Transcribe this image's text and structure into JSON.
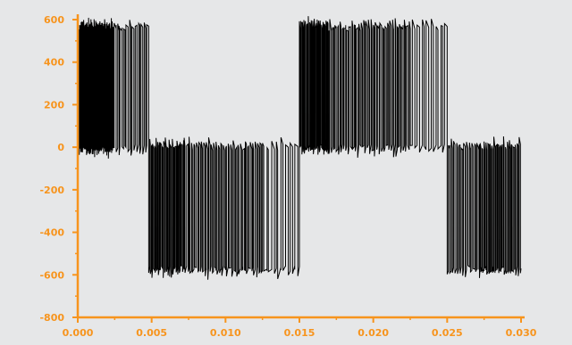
{
  "chart_data": {
    "type": "line",
    "title": "",
    "xlabel": "",
    "ylabel": "",
    "xlim": [
      0,
      0.03
    ],
    "ylim": [
      -800,
      600
    ],
    "x_ticks": [
      "0.000",
      "0.005",
      "0.010",
      "0.015",
      "0.020",
      "0.025",
      "0.030"
    ],
    "y_ticks": [
      "600",
      "400",
      "200",
      "0",
      "-200",
      "-400",
      "-600",
      "-800"
    ],
    "grid": false,
    "legend": "none",
    "axis_color": "#f7941d",
    "line_color": "#000000",
    "background_color": "#e6e7e8",
    "series": [
      {
        "segments": [
          {
            "t_start": 0.0001,
            "t_end": 0.0024,
            "level": 560,
            "low": 0,
            "pulses": 42
          },
          {
            "t_start": 0.0024,
            "t_end": 0.0048,
            "level": 560,
            "low": 0,
            "pulses": 12
          },
          {
            "t_start": 0.0048,
            "t_end": 0.0072,
            "level": 0,
            "low": -570,
            "pulses": 22
          },
          {
            "t_start": 0.0072,
            "t_end": 0.0125,
            "level": -570,
            "low": 0,
            "pulses": 32
          },
          {
            "t_start": 0.0125,
            "t_end": 0.015,
            "level": -570,
            "low": 0,
            "pulses": 8
          },
          {
            "t_start": 0.015,
            "t_end": 0.017,
            "level": 0,
            "low": 570,
            "pulses": 20
          },
          {
            "t_start": 0.017,
            "t_end": 0.0225,
            "level": 560,
            "low": 0,
            "pulses": 34
          },
          {
            "t_start": 0.0225,
            "t_end": 0.025,
            "level": 560,
            "low": 0,
            "pulses": 8
          },
          {
            "t_start": 0.025,
            "t_end": 0.0271,
            "level": 0,
            "low": -570,
            "pulses": 12
          },
          {
            "t_start": 0.0271,
            "t_end": 0.03,
            "level": -570,
            "low": 0,
            "pulses": 22
          }
        ]
      }
    ]
  }
}
